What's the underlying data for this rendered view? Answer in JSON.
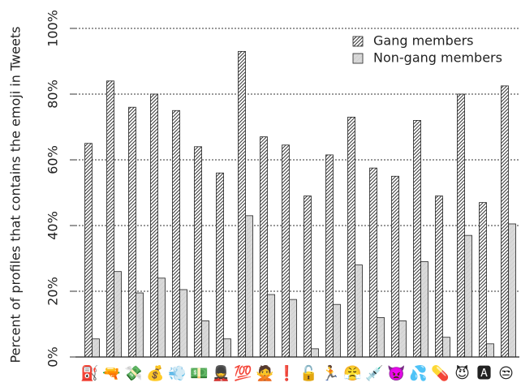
{
  "chart_data": {
    "type": "bar",
    "ylabel": "Percent of profiles that contains the emoji in Tweets",
    "categories": [
      "⛽",
      "🔫",
      "💸",
      "💰",
      "💨",
      "💵",
      "💂",
      "💯",
      "🙅",
      "❗",
      "🔓",
      "🏃",
      "😤",
      "💉",
      "👿",
      "💦",
      "💊",
      "😈",
      "🅰",
      "😒"
    ],
    "series": [
      {
        "name": "Gang members",
        "color": "#333333",
        "values": [
          65,
          84,
          76,
          80,
          75,
          64,
          56,
          93,
          67,
          64.5,
          49,
          61.5,
          73,
          57.5,
          55,
          72,
          49,
          80,
          47,
          82.5
        ]
      },
      {
        "name": "Non-gang members",
        "color": "#d9d9d9",
        "values": [
          5.5,
          26,
          19.5,
          24,
          20.5,
          11,
          5.5,
          43,
          19,
          17.5,
          2.5,
          16,
          28,
          12,
          11,
          29,
          6,
          37,
          4,
          40.5
        ]
      }
    ],
    "ylim": [
      0,
      100
    ],
    "yticks": [
      {
        "value": 0,
        "label": "0%"
      },
      {
        "value": 20,
        "label": "20%"
      },
      {
        "value": 40,
        "label": "40%"
      },
      {
        "value": 60,
        "label": "60%"
      },
      {
        "value": 80,
        "label": "80%"
      },
      {
        "value": 100,
        "label": "100%"
      }
    ],
    "grid": true,
    "legend": "top-right"
  }
}
